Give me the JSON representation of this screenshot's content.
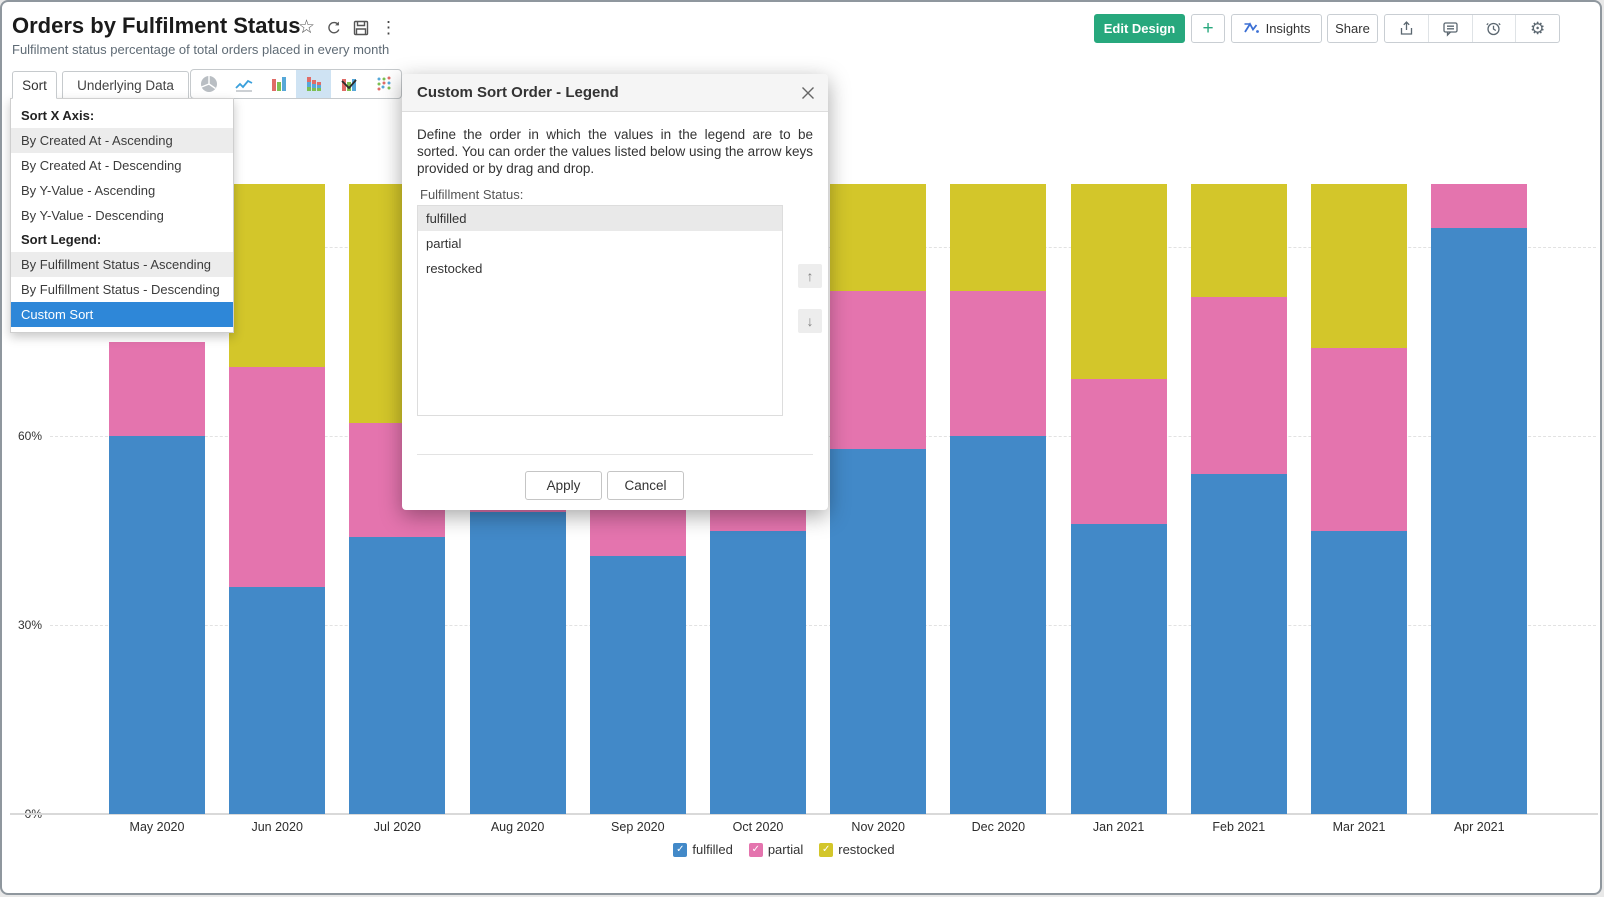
{
  "page": {
    "title": "Orders by Fulfilment Status",
    "subtitle": "Fulfilment status percentage of total orders placed in every month"
  },
  "title_actions": {
    "star": "☆",
    "kebab": "⋮"
  },
  "actions": {
    "edit_design": "Edit Design",
    "plus": "+",
    "insights": "Insights",
    "share": "Share",
    "gear": "⚙"
  },
  "tabs": [
    {
      "label": "Sort",
      "active": true
    },
    {
      "label": "Underlying Data",
      "active": false
    }
  ],
  "chart_type_toolbar": {
    "icons": [
      "pie-chart",
      "line-chart",
      "bar-chart",
      "stacked-bar-chart",
      "combo-chart",
      "scatter-chart"
    ],
    "selected_index": 3
  },
  "sort_menu": {
    "sections": [
      {
        "header": "Sort X Axis:",
        "items": [
          {
            "label": "By Created At - Ascending",
            "state": "highlighted"
          },
          {
            "label": "By Created At - Descending",
            "state": "normal"
          },
          {
            "label": "By Y-Value - Ascending",
            "state": "normal"
          },
          {
            "label": "By Y-Value - Descending",
            "state": "normal"
          }
        ]
      },
      {
        "header": "Sort Legend:",
        "items": [
          {
            "label": "By Fulfillment Status - Ascending",
            "state": "highlighted"
          },
          {
            "label": "By Fulfillment Status - Descending",
            "state": "normal"
          },
          {
            "label": "Custom Sort",
            "state": "selected"
          }
        ]
      }
    ]
  },
  "dialog": {
    "title": "Custom Sort Order - Legend",
    "description": "Define the order in which the values in the legend are to be sorted. You can order the values listed below using the arrow keys provided or by drag and drop.",
    "field_label": "Fulfillment Status:",
    "list_items": [
      {
        "label": "fulfilled",
        "selected": true
      },
      {
        "label": "partial",
        "selected": false
      },
      {
        "label": "restocked",
        "selected": false
      }
    ],
    "up_arrow": "↑",
    "down_arrow": "↓",
    "apply_label": "Apply",
    "cancel_label": "Cancel"
  },
  "chart_data": {
    "type": "bar",
    "stacked": true,
    "value_format": "percent",
    "title": "Orders by Fulfilment Status",
    "categories": [
      "May 2020",
      "Jun 2020",
      "Jul 2020",
      "Aug 2020",
      "Sep 2020",
      "Oct 2020",
      "Nov 2020",
      "Dec 2020",
      "Jan 2021",
      "Feb 2021",
      "Mar 2021",
      "Apr 2021"
    ],
    "series": [
      {
        "name": "fulfilled",
        "color": "#4289c8",
        "values": [
          60,
          36,
          44,
          48,
          41,
          45,
          58,
          60,
          46,
          54,
          45,
          93
        ]
      },
      {
        "name": "partial",
        "color": "#e474ae",
        "values": [
          15,
          35,
          18,
          26,
          30,
          25,
          25,
          23,
          23,
          28,
          29,
          7
        ]
      },
      {
        "name": "restocked",
        "color": "#d3c62a",
        "values": [
          0,
          29,
          38,
          26,
          29,
          30,
          17,
          17,
          31,
          18,
          26,
          0
        ]
      }
    ],
    "y_ticks": [
      "0%",
      "30%",
      "60%",
      "90%"
    ],
    "ylim": [
      0,
      100
    ],
    "grid": "horizontal-dashed",
    "legend_position": "bottom",
    "legend_check": "✓"
  }
}
